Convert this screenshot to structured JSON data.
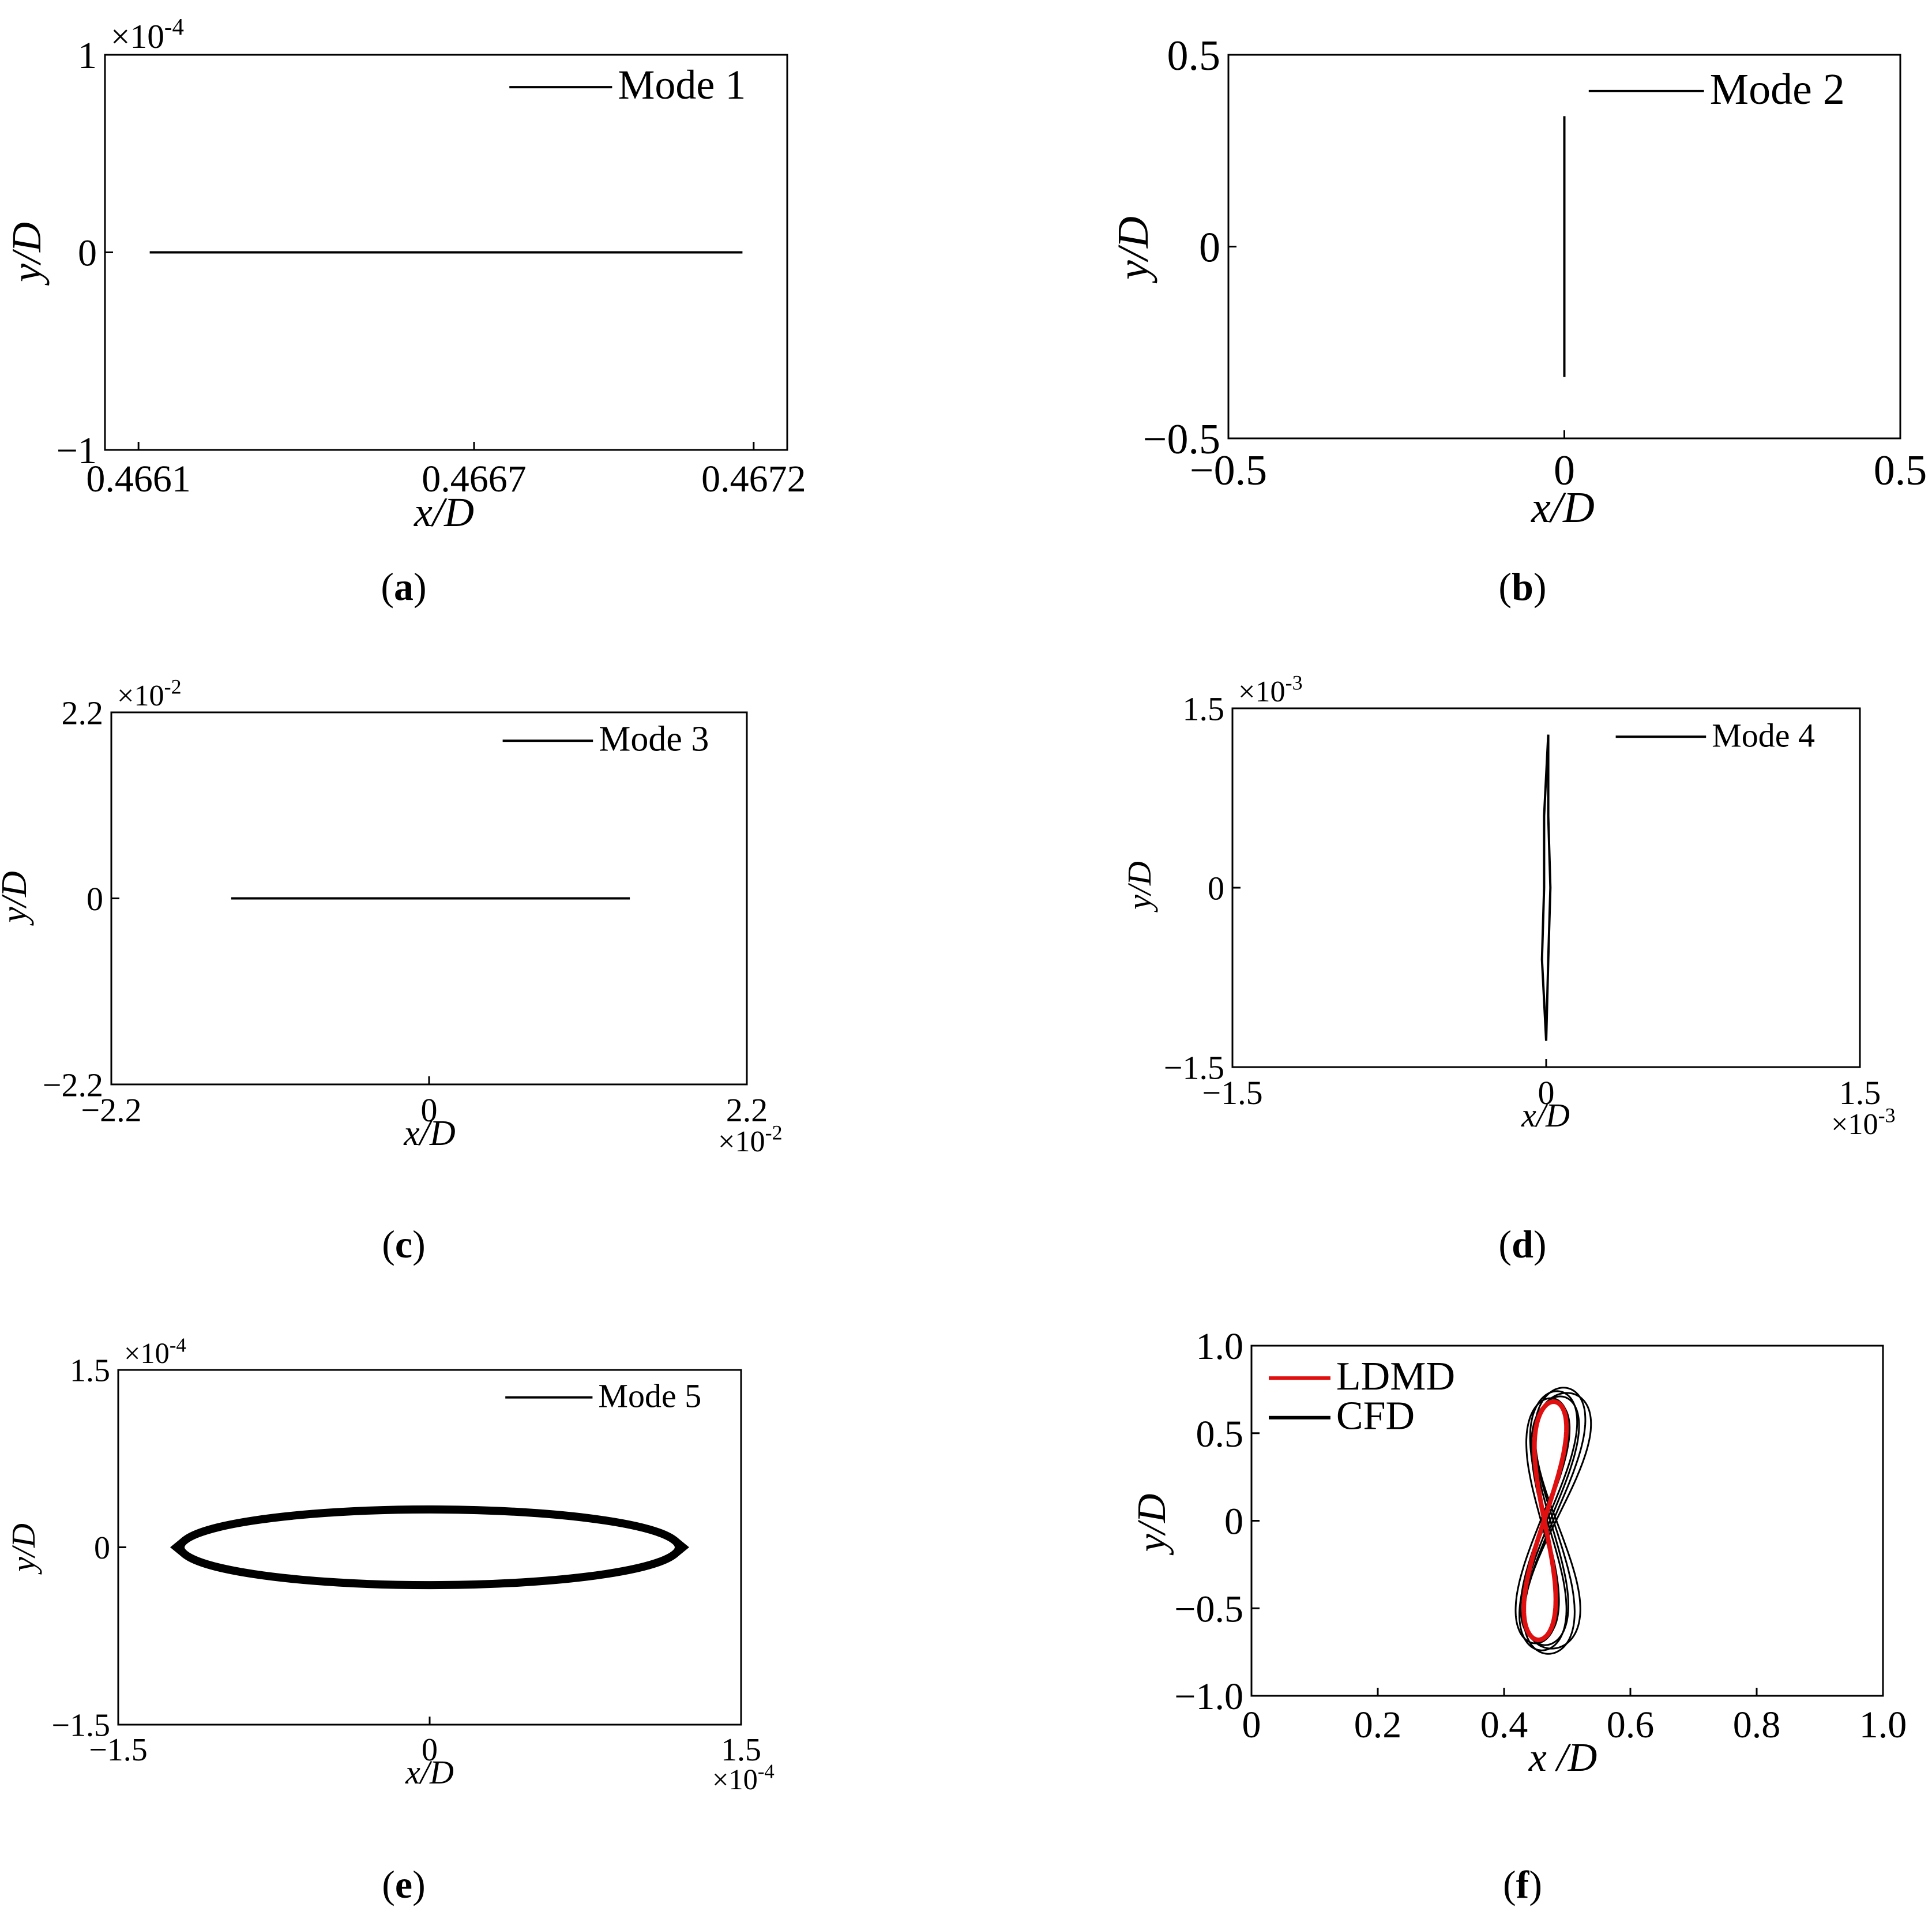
{
  "figure": {
    "captions": [
      "(a)",
      "(b)",
      "(c)",
      "(d)",
      "(e)",
      "(f)"
    ]
  },
  "chart_data": [
    {
      "id": "a",
      "caption": {
        "open": "(",
        "letter": "a",
        "close": ")"
      },
      "type": "line",
      "xlabel": "x/D",
      "ylabel": "y/D",
      "xlim": [
        0.46604,
        0.46726
      ],
      "ylim": [
        -1,
        1
      ],
      "xticks": [
        {
          "v": 0.4661,
          "label": "0.4661"
        },
        {
          "v": 0.4667,
          "label": "0.4667"
        },
        {
          "v": 0.4672,
          "label": "0.4672"
        }
      ],
      "yticks": [
        {
          "v": -1,
          "label": "−1"
        },
        {
          "v": 0,
          "label": "0"
        },
        {
          "v": 1,
          "label": "1"
        }
      ],
      "y_multiplier": {
        "base": "×10",
        "exp": "-4"
      },
      "x_multiplier": null,
      "legend": [
        {
          "label": "Mode 1",
          "color": "#000000"
        }
      ],
      "series": [
        {
          "name": "Mode 1",
          "color": "#000000",
          "points": [
            [
              0.46612,
              0
            ],
            [
              0.46718,
              0
            ]
          ]
        }
      ]
    },
    {
      "id": "b",
      "caption": {
        "open": "(",
        "letter": "b",
        "close": ")"
      },
      "type": "line",
      "xlabel": "x/D",
      "ylabel": "y/D",
      "xlim": [
        -0.5,
        0.5
      ],
      "ylim": [
        -0.5,
        0.5
      ],
      "xticks": [
        {
          "v": -0.5,
          "label": "−0.5"
        },
        {
          "v": 0,
          "label": "0"
        },
        {
          "v": 0.5,
          "label": "0.5"
        }
      ],
      "yticks": [
        {
          "v": -0.5,
          "label": "−0.5"
        },
        {
          "v": 0,
          "label": "0"
        },
        {
          "v": 0.5,
          "label": "0.5"
        }
      ],
      "y_multiplier": null,
      "x_multiplier": null,
      "legend": [
        {
          "label": "Mode 2",
          "color": "#000000"
        }
      ],
      "series": [
        {
          "name": "Mode 2",
          "color": "#000000",
          "points": [
            [
              0,
              -0.34
            ],
            [
              0,
              0.34
            ]
          ]
        }
      ]
    },
    {
      "id": "c",
      "caption": {
        "open": "(",
        "letter": "c",
        "close": ")"
      },
      "type": "line",
      "xlabel": "x/D",
      "ylabel": "y/D",
      "xlim": [
        -2.2,
        2.2
      ],
      "ylim": [
        -2.2,
        2.2
      ],
      "xticks": [
        {
          "v": -2.2,
          "label": "−2.2"
        },
        {
          "v": 0,
          "label": "0"
        },
        {
          "v": 2.2,
          "label": "2.2"
        }
      ],
      "yticks": [
        {
          "v": -2.2,
          "label": "−2.2"
        },
        {
          "v": 0,
          "label": "0"
        },
        {
          "v": 2.2,
          "label": "2.2"
        }
      ],
      "y_multiplier": {
        "base": "×10",
        "exp": "-2"
      },
      "x_multiplier": {
        "base": "×10",
        "exp": "-2"
      },
      "legend": [
        {
          "label": "Mode 3",
          "color": "#000000"
        }
      ],
      "series": [
        {
          "name": "Mode 3",
          "color": "#000000",
          "points": [
            [
              -1.37,
              0
            ],
            [
              1.39,
              0
            ]
          ]
        }
      ]
    },
    {
      "id": "d",
      "caption": {
        "open": "(",
        "letter": "d",
        "close": ")"
      },
      "type": "line",
      "xlabel": "x/D",
      "ylabel": "y/D",
      "xlim": [
        -1.5,
        1.5
      ],
      "ylim": [
        -1.5,
        1.5
      ],
      "xticks": [
        {
          "v": -1.5,
          "label": "−1.5"
        },
        {
          "v": 0,
          "label": "0"
        },
        {
          "v": 1.5,
          "label": "1.5"
        }
      ],
      "yticks": [
        {
          "v": -1.5,
          "label": "−1.5"
        },
        {
          "v": 0,
          "label": "0"
        },
        {
          "v": 1.5,
          "label": "1.5"
        }
      ],
      "y_multiplier": {
        "base": "×10",
        "exp": "-3"
      },
      "x_multiplier": {
        "base": "×10",
        "exp": "-3"
      },
      "legend": [
        {
          "label": "Mode 4",
          "color": "#000000"
        }
      ],
      "series": [
        {
          "name": "Mode 4",
          "color": "#000000",
          "points": [
            [
              0.0,
              -1.28
            ],
            [
              0.01,
              -0.6
            ],
            [
              0.02,
              0.0
            ],
            [
              0.01,
              0.6
            ],
            [
              0.01,
              1.28
            ],
            [
              -0.01,
              0.6
            ],
            [
              -0.01,
              0.0
            ],
            [
              -0.02,
              -0.6
            ],
            [
              0.0,
              -1.28
            ]
          ]
        }
      ]
    },
    {
      "id": "e",
      "caption": {
        "open": "(",
        "letter": "e",
        "close": ")"
      },
      "type": "line",
      "xlabel": "x/D",
      "ylabel": "y/D",
      "xlim": [
        -1.5,
        1.5
      ],
      "ylim": [
        -1.5,
        1.5
      ],
      "xticks": [
        {
          "v": -1.5,
          "label": "−1.5"
        },
        {
          "v": 0,
          "label": "0"
        },
        {
          "v": 1.5,
          "label": "1.5"
        }
      ],
      "yticks": [
        {
          "v": -1.5,
          "label": "−1.5"
        },
        {
          "v": 0,
          "label": "0"
        },
        {
          "v": 1.5,
          "label": "1.5"
        }
      ],
      "y_multiplier": {
        "base": "×10",
        "exp": "-4"
      },
      "x_multiplier": {
        "base": "×10",
        "exp": "-4"
      },
      "legend": [
        {
          "label": "Mode 5",
          "color": "#000000"
        }
      ],
      "series": [
        {
          "name": "Mode 5",
          "color": "#000000",
          "ellipse": {
            "cx": 0,
            "cy": 0,
            "rx": 1.2,
            "ry": 0.32
          }
        }
      ]
    },
    {
      "id": "f",
      "caption": {
        "open": "(",
        "letter": "f",
        "close": ")"
      },
      "type": "line",
      "xlabel": "x /D",
      "ylabel": "y/D",
      "xlim": [
        0,
        1
      ],
      "ylim": [
        -1,
        1
      ],
      "xticks": [
        {
          "v": 0,
          "label": "0"
        },
        {
          "v": 0.2,
          "label": "0.2"
        },
        {
          "v": 0.4,
          "label": "0.4"
        },
        {
          "v": 0.6,
          "label": "0.6"
        },
        {
          "v": 0.8,
          "label": "0.8"
        },
        {
          "v": 1.0,
          "label": "1.0"
        }
      ],
      "yticks": [
        {
          "v": -1.0,
          "label": "−1.0"
        },
        {
          "v": -0.5,
          "label": "−0.5"
        },
        {
          "v": 0,
          "label": "0"
        },
        {
          "v": 0.5,
          "label": "0.5"
        },
        {
          "v": 1.0,
          "label": "1.0"
        }
      ],
      "y_multiplier": null,
      "x_multiplier": null,
      "legend": [
        {
          "label": "LDMD",
          "color": "#e01010"
        },
        {
          "label": "CFD",
          "color": "#000000"
        }
      ],
      "series": [
        {
          "name": "CFD",
          "color": "#000000",
          "figure_eight": {
            "cx": 0.47,
            "amp_x": 0.035,
            "amp_y": 0.72,
            "variants": [
              [
                0.033,
                0.7,
                -0.01
              ],
              [
                0.037,
                0.74,
                0.0
              ],
              [
                0.04,
                0.76,
                0.01
              ],
              [
                0.03,
                0.68,
                -0.005
              ],
              [
                0.044,
                0.73,
                0.015
              ],
              [
                0.035,
                0.71,
                0.005
              ]
            ]
          }
        },
        {
          "name": "LDMD",
          "color": "#e01010",
          "figure_eight": {
            "cx": 0.465,
            "amp_x": 0.025,
            "amp_y": 0.68,
            "variants": [
              [
                0.025,
                0.68,
                0.0
              ]
            ]
          }
        }
      ]
    }
  ]
}
